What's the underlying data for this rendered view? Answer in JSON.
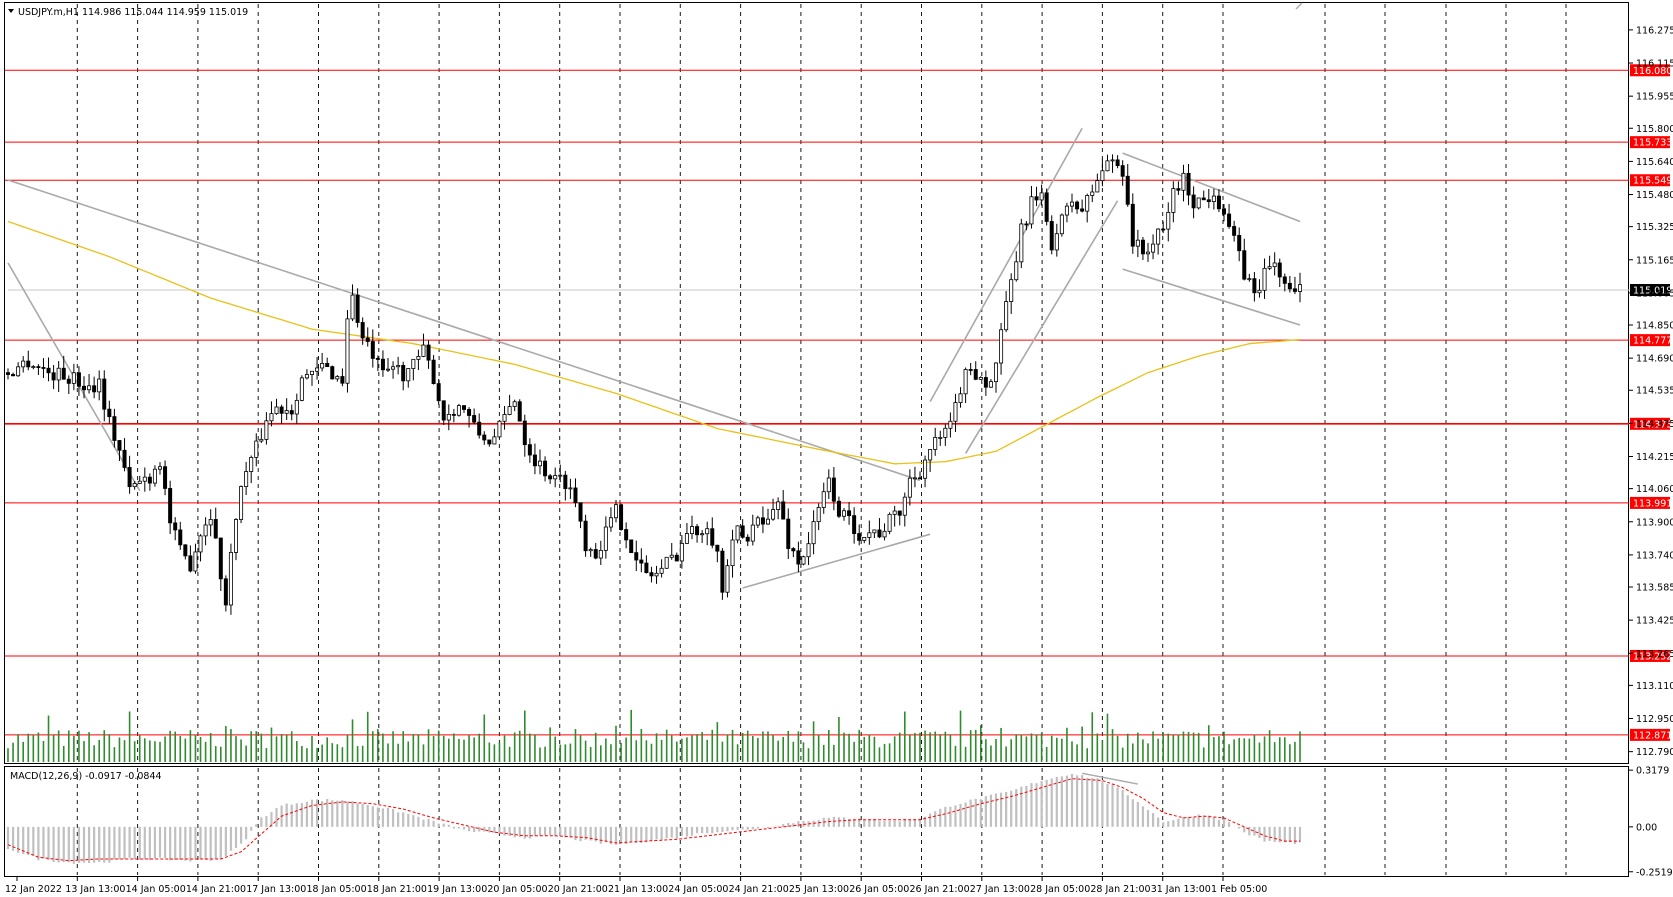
{
  "header": {
    "symbol_info": "USDJPY.m,H1  114.986 115.044 114.959 115.019",
    "macd_info": "MACD(12,26,9) -0.0917 -0.0844"
  },
  "colors": {
    "bull": "#000000",
    "bear": "#000000",
    "level": "#ff0000",
    "ma": "#e8c11a",
    "trend": "#a9a9a9",
    "volume": "#2e8b2e",
    "macd_hist": "#c0c0c0",
    "macd_signal": "#ff0000",
    "current_price_bg": "#000000"
  },
  "chart_data": [
    {
      "type": "candlestick",
      "instrument": "USDJPY.m",
      "timeframe": "H1",
      "last": {
        "open": 114.986,
        "high": 115.044,
        "low": 114.959,
        "close": 115.019
      },
      "y_axis_ticks": [
        "116.275",
        "116.115",
        "115.955",
        "115.800",
        "115.640",
        "115.480",
        "115.325",
        "115.165",
        "115.005",
        "114.850",
        "114.690",
        "114.535",
        "114.375",
        "114.215",
        "114.060",
        "113.900",
        "113.740",
        "113.585",
        "113.425",
        "113.265",
        "113.110",
        "112.950",
        "112.790"
      ],
      "ylim": [
        112.74,
        116.4
      ],
      "x_axis_ticks": [
        "12 Jan 2022",
        "13 Jan 13:00",
        "14 Jan 05:00",
        "14 Jan 21:00",
        "17 Jan 13:00",
        "18 Jan 05:00",
        "18 Jan 21:00",
        "19 Jan 13:00",
        "20 Jan 05:00",
        "20 Jan 21:00",
        "21 Jan 13:00",
        "24 Jan 05:00",
        "24 Jan 21:00",
        "25 Jan 13:00",
        "26 Jan 05:00",
        "26 Jan 21:00",
        "27 Jan 13:00",
        "28 Jan 05:00",
        "28 Jan 21:00",
        "31 Jan 13:00",
        "1 Feb 05:00"
      ],
      "horizontal_levels": [
        "116.080",
        "115.733",
        "115.549",
        "114.777",
        "114.373",
        "113.991",
        "113.252",
        "112.871"
      ],
      "current_price": "115.019",
      "close_path": [
        [
          0,
          114.62
        ],
        [
          4,
          114.68
        ],
        [
          8,
          114.62
        ],
        [
          12,
          114.6
        ],
        [
          16,
          114.55
        ],
        [
          18,
          114.58
        ],
        [
          20,
          114.38
        ],
        [
          22,
          114.25
        ],
        [
          24,
          114.05
        ],
        [
          26,
          114.1
        ],
        [
          28,
          114.12
        ],
        [
          30,
          114.2
        ],
        [
          32,
          113.9
        ],
        [
          34,
          113.75
        ],
        [
          36,
          113.7
        ],
        [
          38,
          113.85
        ],
        [
          40,
          113.95
        ],
        [
          42,
          113.65
        ],
        [
          43,
          113.5
        ],
        [
          45,
          113.95
        ],
        [
          47,
          114.15
        ],
        [
          49,
          114.25
        ],
        [
          51,
          114.4
        ],
        [
          53,
          114.45
        ],
        [
          56,
          114.45
        ],
        [
          58,
          114.6
        ],
        [
          60,
          114.6
        ],
        [
          62,
          114.65
        ],
        [
          64,
          114.62
        ],
        [
          66,
          114.58
        ],
        [
          67,
          114.9
        ],
        [
          68,
          114.98
        ],
        [
          70,
          114.78
        ],
        [
          72,
          114.7
        ],
        [
          74,
          114.6
        ],
        [
          76,
          114.65
        ],
        [
          78,
          114.62
        ],
        [
          80,
          114.65
        ],
        [
          82,
          114.72
        ],
        [
          84,
          114.6
        ],
        [
          86,
          114.4
        ],
        [
          88,
          114.45
        ],
        [
          90,
          114.45
        ],
        [
          92,
          114.35
        ],
        [
          94,
          114.3
        ],
        [
          96,
          114.3
        ],
        [
          98,
          114.4
        ],
        [
          100,
          114.5
        ],
        [
          102,
          114.3
        ],
        [
          104,
          114.2
        ],
        [
          106,
          114.15
        ],
        [
          108,
          114.1
        ],
        [
          110,
          114.1
        ],
        [
          112,
          114.0
        ],
        [
          114,
          113.8
        ],
        [
          116,
          113.75
        ],
        [
          118,
          113.85
        ],
        [
          120,
          113.95
        ],
        [
          122,
          113.85
        ],
        [
          124,
          113.7
        ],
        [
          126,
          113.65
        ],
        [
          128,
          113.65
        ],
        [
          130,
          113.7
        ],
        [
          132,
          113.75
        ],
        [
          134,
          113.85
        ],
        [
          136,
          113.85
        ],
        [
          138,
          113.9
        ],
        [
          140,
          113.75
        ],
        [
          141,
          113.55
        ],
        [
          142,
          113.7
        ],
        [
          144,
          113.85
        ],
        [
          146,
          113.8
        ],
        [
          148,
          113.95
        ],
        [
          150,
          113.9
        ],
        [
          152,
          114.0
        ],
        [
          154,
          113.8
        ],
        [
          156,
          113.7
        ],
        [
          158,
          113.8
        ],
        [
          160,
          113.95
        ],
        [
          162,
          114.1
        ],
        [
          164,
          113.95
        ],
        [
          166,
          113.9
        ],
        [
          168,
          113.85
        ],
        [
          170,
          113.85
        ],
        [
          172,
          113.85
        ],
        [
          174,
          113.9
        ],
        [
          176,
          113.95
        ],
        [
          178,
          114.1
        ],
        [
          180,
          114.15
        ],
        [
          182,
          114.25
        ],
        [
          184,
          114.3
        ],
        [
          186,
          114.35
        ],
        [
          188,
          114.55
        ],
        [
          190,
          114.65
        ],
        [
          192,
          114.6
        ],
        [
          194,
          114.55
        ],
        [
          196,
          114.8
        ],
        [
          198,
          115.05
        ],
        [
          200,
          115.3
        ],
        [
          202,
          115.45
        ],
        [
          204,
          115.45
        ],
        [
          206,
          115.25
        ],
        [
          208,
          115.35
        ],
        [
          210,
          115.45
        ],
        [
          212,
          115.4
        ],
        [
          214,
          115.5
        ],
        [
          216,
          115.6
        ],
        [
          218,
          115.65
        ],
        [
          220,
          115.6
        ],
        [
          221,
          115.45
        ],
        [
          222,
          115.25
        ],
        [
          224,
          115.2
        ],
        [
          226,
          115.25
        ],
        [
          228,
          115.3
        ],
        [
          230,
          115.5
        ],
        [
          232,
          115.55
        ],
        [
          234,
          115.45
        ],
        [
          236,
          115.45
        ],
        [
          238,
          115.5
        ],
        [
          240,
          115.4
        ],
        [
          242,
          115.25
        ],
        [
          244,
          115.1
        ],
        [
          246,
          115.0
        ],
        [
          248,
          115.1
        ],
        [
          250,
          115.15
        ],
        [
          252,
          115.05
        ],
        [
          254,
          114.98
        ],
        [
          255,
          115.019
        ]
      ],
      "ma_path": [
        [
          0,
          115.35
        ],
        [
          20,
          115.18
        ],
        [
          40,
          114.98
        ],
        [
          60,
          114.83
        ],
        [
          80,
          114.76
        ],
        [
          100,
          114.66
        ],
        [
          120,
          114.52
        ],
        [
          140,
          114.35
        ],
        [
          160,
          114.25
        ],
        [
          175,
          114.18
        ],
        [
          185,
          114.19
        ],
        [
          195,
          114.24
        ],
        [
          205,
          114.37
        ],
        [
          215,
          114.5
        ],
        [
          225,
          114.62
        ],
        [
          235,
          114.7
        ],
        [
          245,
          114.76
        ],
        [
          255,
          114.78
        ]
      ],
      "trend_lines": [
        {
          "from": [
            0,
            115.55
          ],
          "to": [
            180,
            114.1
          ]
        },
        {
          "from": [
            0,
            115.15
          ],
          "to": [
            26,
            114.05
          ]
        },
        {
          "from": [
            145,
            113.58
          ],
          "to": [
            182,
            113.84
          ]
        },
        {
          "from": [
            182,
            114.48
          ],
          "to": [
            212,
            115.8
          ]
        },
        {
          "from": [
            189,
            114.23
          ],
          "to": [
            219,
            115.45
          ]
        },
        {
          "from": [
            220,
            115.68
          ],
          "to": [
            255,
            115.35
          ]
        },
        {
          "from": [
            220,
            115.12
          ],
          "to": [
            255,
            114.85
          ]
        }
      ],
      "volume": [
        {
          "x_frac": 0.11,
          "v": 0.45
        },
        {
          "x_frac": 0.2,
          "v": 0.5
        },
        {
          "x_frac": 0.32,
          "v": 0.65
        },
        {
          "x_frac": 0.45,
          "v": 0.55
        },
        {
          "x_frac": 0.56,
          "v": 0.85
        },
        {
          "x_frac": 0.58,
          "v": 1.0
        },
        {
          "x_frac": 0.72,
          "v": 0.6
        },
        {
          "x_frac": 0.82,
          "v": 0.7
        }
      ]
    },
    {
      "type": "macd",
      "params": "12,26,9",
      "main": -0.0917,
      "signal": -0.0844,
      "y_axis_ticks": [
        "0.3179",
        "0.00",
        "-0.2519"
      ],
      "ylim": [
        -0.27,
        0.33
      ],
      "hist_path": [
        [
          0,
          -0.12
        ],
        [
          6,
          -0.18
        ],
        [
          12,
          -0.2
        ],
        [
          18,
          -0.2
        ],
        [
          24,
          -0.18
        ],
        [
          30,
          -0.18
        ],
        [
          36,
          -0.19
        ],
        [
          42,
          -0.18
        ],
        [
          46,
          -0.1
        ],
        [
          50,
          0.05
        ],
        [
          54,
          0.12
        ],
        [
          60,
          0.15
        ],
        [
          66,
          0.15
        ],
        [
          72,
          0.12
        ],
        [
          78,
          0.08
        ],
        [
          84,
          0.03
        ],
        [
          90,
          -0.02
        ],
        [
          96,
          -0.04
        ],
        [
          102,
          -0.06
        ],
        [
          108,
          -0.05
        ],
        [
          114,
          -0.08
        ],
        [
          120,
          -0.1
        ],
        [
          126,
          -0.08
        ],
        [
          132,
          -0.06
        ],
        [
          138,
          -0.03
        ],
        [
          144,
          -0.02
        ],
        [
          150,
          0.0
        ],
        [
          156,
          0.03
        ],
        [
          162,
          0.05
        ],
        [
          168,
          0.05
        ],
        [
          174,
          0.03
        ],
        [
          180,
          0.05
        ],
        [
          186,
          0.12
        ],
        [
          192,
          0.16
        ],
        [
          198,
          0.2
        ],
        [
          204,
          0.26
        ],
        [
          210,
          0.3
        ],
        [
          216,
          0.26
        ],
        [
          220,
          0.2
        ],
        [
          224,
          0.12
        ],
        [
          228,
          0.03
        ],
        [
          232,
          0.05
        ],
        [
          236,
          0.07
        ],
        [
          240,
          0.04
        ],
        [
          244,
          -0.03
        ],
        [
          248,
          -0.08
        ],
        [
          252,
          -0.09
        ],
        [
          255,
          -0.09
        ]
      ],
      "signal_path": [
        [
          0,
          -0.1
        ],
        [
          6,
          -0.17
        ],
        [
          12,
          -0.19
        ],
        [
          18,
          -0.18
        ],
        [
          24,
          -0.18
        ],
        [
          30,
          -0.18
        ],
        [
          36,
          -0.18
        ],
        [
          42,
          -0.18
        ],
        [
          46,
          -0.14
        ],
        [
          50,
          -0.04
        ],
        [
          54,
          0.06
        ],
        [
          60,
          0.12
        ],
        [
          66,
          0.14
        ],
        [
          72,
          0.13
        ],
        [
          78,
          0.1
        ],
        [
          84,
          0.05
        ],
        [
          90,
          0.01
        ],
        [
          96,
          -0.03
        ],
        [
          102,
          -0.05
        ],
        [
          108,
          -0.05
        ],
        [
          114,
          -0.06
        ],
        [
          120,
          -0.09
        ],
        [
          126,
          -0.08
        ],
        [
          132,
          -0.07
        ],
        [
          138,
          -0.05
        ],
        [
          144,
          -0.03
        ],
        [
          150,
          -0.01
        ],
        [
          156,
          0.01
        ],
        [
          162,
          0.03
        ],
        [
          168,
          0.04
        ],
        [
          174,
          0.04
        ],
        [
          180,
          0.04
        ],
        [
          186,
          0.08
        ],
        [
          192,
          0.13
        ],
        [
          198,
          0.17
        ],
        [
          204,
          0.22
        ],
        [
          210,
          0.27
        ],
        [
          216,
          0.26
        ],
        [
          220,
          0.22
        ],
        [
          224,
          0.16
        ],
        [
          228,
          0.08
        ],
        [
          232,
          0.05
        ],
        [
          236,
          0.06
        ],
        [
          240,
          0.05
        ],
        [
          244,
          0.0
        ],
        [
          248,
          -0.05
        ],
        [
          252,
          -0.08
        ],
        [
          255,
          -0.08
        ]
      ]
    }
  ]
}
